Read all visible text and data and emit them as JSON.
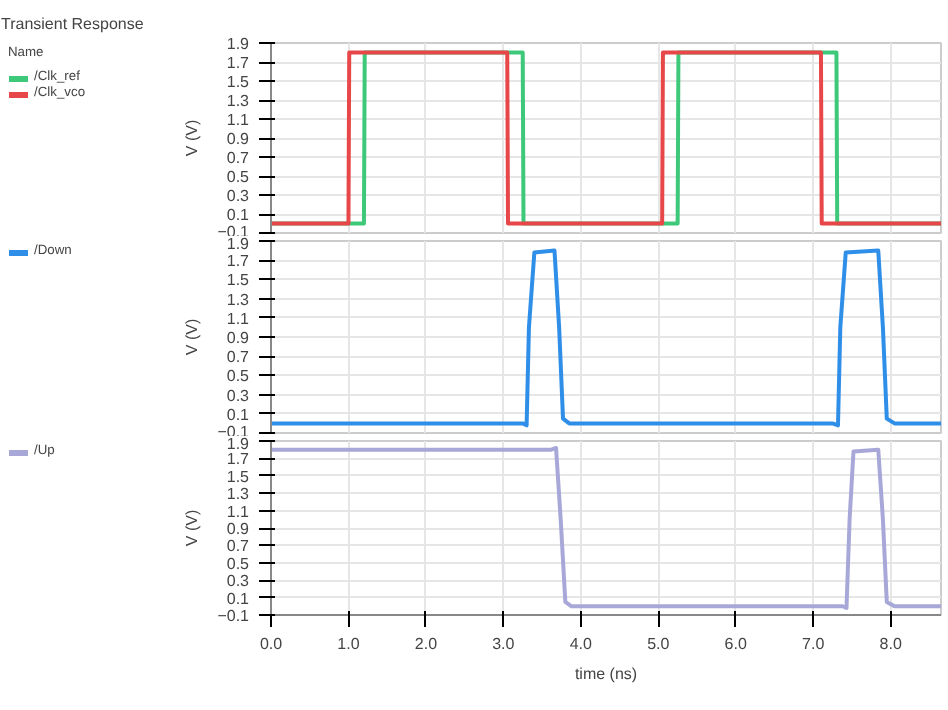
{
  "chart_data": [
    {
      "type": "line",
      "title": "Transient Response",
      "legend_title": "Name",
      "ylabel": "V (V)",
      "xlim": [
        0,
        8.65
      ],
      "ylim": [
        -0.1,
        1.9
      ],
      "xticks": [
        0,
        1,
        2,
        3,
        4,
        5,
        6,
        7,
        8
      ],
      "yticks": [
        -0.1,
        0.1,
        0.3,
        0.5,
        0.7,
        0.9,
        1.1,
        1.3,
        1.5,
        1.7,
        1.9
      ],
      "tick_labels": "y",
      "grid": true,
      "legend": "left",
      "series": [
        {
          "name": "/Clk_ref",
          "color": "#3ec97a",
          "x": [
            0,
            1.2,
            1.21,
            3.25,
            3.26,
            5.25,
            5.26,
            7.3,
            7.31,
            8.65
          ],
          "values": [
            0,
            0,
            1.8,
            1.8,
            0,
            0,
            1.8,
            1.8,
            0,
            0
          ]
        },
        {
          "name": "/Clk_vco",
          "color": "#e8474a",
          "x": [
            0,
            1.0,
            1.01,
            3.05,
            3.06,
            5.05,
            5.06,
            7.1,
            7.11,
            8.65
          ],
          "values": [
            0,
            0,
            1.8,
            1.8,
            0,
            0,
            1.8,
            1.8,
            0,
            0
          ]
        }
      ]
    },
    {
      "type": "line",
      "ylabel": "V (V)",
      "xlim": [
        0,
        8.65
      ],
      "ylim": [
        -0.1,
        1.9
      ],
      "xticks": [
        0,
        1,
        2,
        3,
        4,
        5,
        6,
        7,
        8
      ],
      "yticks": [
        -0.1,
        0.1,
        0.3,
        0.5,
        0.7,
        0.9,
        1.1,
        1.3,
        1.5,
        1.7,
        1.9
      ],
      "tick_labels": "y",
      "grid": true,
      "legend": "left",
      "series": [
        {
          "name": "/Down",
          "color": "#2f8fe8",
          "x": [
            0,
            3.25,
            3.3,
            3.33,
            3.4,
            3.66,
            3.72,
            3.77,
            3.85,
            7.25,
            7.32,
            7.35,
            7.42,
            7.84,
            7.9,
            7.95,
            8.05,
            8.65
          ],
          "values": [
            0,
            0,
            -0.02,
            1.0,
            1.78,
            1.8,
            1.0,
            0.05,
            0,
            0,
            -0.02,
            1.0,
            1.78,
            1.8,
            1.0,
            0.05,
            0,
            0
          ]
        }
      ]
    },
    {
      "type": "line",
      "ylabel": "V (V)",
      "xlabel": "time (ns)",
      "xlim": [
        0,
        8.65
      ],
      "ylim": [
        -0.1,
        1.9
      ],
      "xticks": [
        {
          "value": 0,
          "label": "0.0"
        },
        {
          "value": 1,
          "label": "1.0"
        },
        {
          "value": 2,
          "label": "2.0"
        },
        {
          "value": 3,
          "label": "3.0"
        },
        {
          "value": 4,
          "label": "4.0"
        },
        {
          "value": 5,
          "label": "5.0"
        },
        {
          "value": 6,
          "label": "6.0"
        },
        {
          "value": 7,
          "label": "7.0"
        },
        {
          "value": 8,
          "label": "8.0"
        }
      ],
      "yticks": [
        -0.1,
        0.1,
        0.3,
        0.5,
        0.7,
        0.9,
        1.1,
        1.3,
        1.5,
        1.7,
        1.9
      ],
      "grid": true,
      "legend": "left",
      "series": [
        {
          "name": "/Up",
          "color": "#a8a8d8",
          "x": [
            0,
            3.62,
            3.68,
            3.74,
            3.8,
            3.88,
            7.38,
            7.43,
            7.47,
            7.52,
            7.84,
            7.9,
            7.95,
            8.05,
            8.65
          ],
          "values": [
            1.8,
            1.8,
            1.82,
            1.0,
            0.05,
            0,
            0,
            -0.02,
            1.0,
            1.78,
            1.8,
            1.0,
            0.05,
            0,
            0
          ]
        }
      ]
    }
  ]
}
